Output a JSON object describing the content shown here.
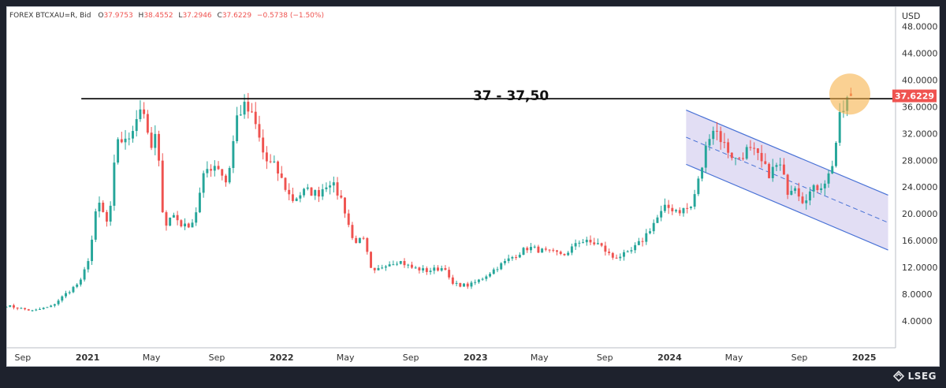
{
  "header": {
    "symbol": "FOREX BTCXAU=R, Bid",
    "open_label": "O",
    "open": "37.9753",
    "high_label": "H",
    "high": "38.4552",
    "low_label": "L",
    "low": "37.2946",
    "close_label": "C",
    "close": "37.6229",
    "change": "−0.5738 (−1.50%)"
  },
  "colors": {
    "up": "#26a69a",
    "down": "#ef5350",
    "channel_line": "#4a73d6",
    "channel_fill": "#d8d3f0",
    "resistance": "#000000",
    "highlight": "#f6b24b",
    "price_badge": "#ef5350"
  },
  "footer": {
    "brand": "LSEG"
  },
  "chart_data": {
    "type": "candlestick",
    "currency": "USD",
    "current_price": "37.6229",
    "resistance_label": "37 - 37,50",
    "resistance_level": 37.2,
    "ylim": [
      0,
      51
    ],
    "y_ticks": [
      "4.0000",
      "8.0000",
      "12.0000",
      "16.0000",
      "20.0000",
      "24.0000",
      "28.0000",
      "32.0000",
      "36.0000",
      "40.0000",
      "44.0000",
      "48.0000"
    ],
    "x_ticks": [
      {
        "label": "Sep",
        "date": "2020-09-01"
      },
      {
        "label": "2021",
        "date": "2021-01-01"
      },
      {
        "label": "May",
        "date": "2021-05-01"
      },
      {
        "label": "Sep",
        "date": "2021-09-01"
      },
      {
        "label": "2022",
        "date": "2022-01-01"
      },
      {
        "label": "May",
        "date": "2022-05-01"
      },
      {
        "label": "Sep",
        "date": "2022-09-01"
      },
      {
        "label": "2023",
        "date": "2023-01-01"
      },
      {
        "label": "May",
        "date": "2023-05-01"
      },
      {
        "label": "Sep",
        "date": "2023-09-01"
      },
      {
        "label": "2024",
        "date": "2024-01-01"
      },
      {
        "label": "May",
        "date": "2024-05-01"
      },
      {
        "label": "Sep",
        "date": "2024-09-01"
      },
      {
        "label": "2025",
        "date": "2025-01-01"
      }
    ],
    "x_range": [
      "2020-08-01",
      "2025-03-01"
    ],
    "resistance_start": "2021-01-01",
    "channel": {
      "upper": [
        {
          "date": "2024-02-01",
          "value": 35.5
        },
        {
          "date": "2025-02-15",
          "value": 22.8
        }
      ],
      "lower": [
        {
          "date": "2024-02-01",
          "value": 27.4
        },
        {
          "date": "2025-02-15",
          "value": 14.6
        }
      ]
    },
    "highlight": {
      "date": "2024-12-05",
      "value": 37.9
    },
    "anchors": [
      [
        "2020-08-01",
        6.3
      ],
      [
        "2020-09-20",
        5.5
      ],
      [
        "2020-10-25",
        6.2
      ],
      [
        "2020-11-20",
        8.0
      ],
      [
        "2020-12-20",
        10.0
      ],
      [
        "2021-01-05",
        14.0
      ],
      [
        "2021-01-20",
        22.0
      ],
      [
        "2021-02-10",
        18.0
      ],
      [
        "2021-02-25",
        31.5
      ],
      [
        "2021-03-15",
        30.5
      ],
      [
        "2021-04-05",
        35.0
      ],
      [
        "2021-04-15",
        36.5
      ],
      [
        "2021-04-28",
        29.0
      ],
      [
        "2021-05-10",
        32.0
      ],
      [
        "2021-05-25",
        18.0
      ],
      [
        "2021-06-10",
        20.0
      ],
      [
        "2021-07-01",
        18.0
      ],
      [
        "2021-07-20",
        19.0
      ],
      [
        "2021-08-10",
        26.5
      ],
      [
        "2021-09-01",
        27.5
      ],
      [
        "2021-09-20",
        24.5
      ],
      [
        "2021-10-10",
        35.0
      ],
      [
        "2021-10-25",
        36.0
      ],
      [
        "2021-11-10",
        34.0
      ],
      [
        "2021-12-01",
        28.0
      ],
      [
        "2021-12-20",
        27.0
      ],
      [
        "2022-01-20",
        22.0
      ],
      [
        "2022-02-15",
        23.5
      ],
      [
        "2022-03-10",
        23.0
      ],
      [
        "2022-04-01",
        25.0
      ],
      [
        "2022-04-25",
        22.0
      ],
      [
        "2022-05-15",
        16.0
      ],
      [
        "2022-06-05",
        16.0
      ],
      [
        "2022-06-20",
        11.0
      ],
      [
        "2022-07-15",
        12.5
      ],
      [
        "2022-08-10",
        13.0
      ],
      [
        "2022-09-01",
        12.0
      ],
      [
        "2022-10-01",
        11.5
      ],
      [
        "2022-11-05",
        12.0
      ],
      [
        "2022-11-15",
        9.5
      ],
      [
        "2022-12-20",
        9.3
      ],
      [
        "2023-01-10",
        10.2
      ],
      [
        "2023-02-10",
        12.0
      ],
      [
        "2023-03-10",
        13.5
      ],
      [
        "2023-04-10",
        15.0
      ],
      [
        "2023-05-20",
        14.2
      ],
      [
        "2023-06-25",
        14.0
      ],
      [
        "2023-07-10",
        16.0
      ],
      [
        "2023-08-20",
        15.5
      ],
      [
        "2023-09-15",
        13.5
      ],
      [
        "2023-10-15",
        14.0
      ],
      [
        "2023-11-10",
        16.0
      ],
      [
        "2023-12-05",
        19.0
      ],
      [
        "2023-12-25",
        21.0
      ],
      [
        "2024-01-20",
        20.5
      ],
      [
        "2024-02-10",
        21.0
      ],
      [
        "2024-02-28",
        26.0
      ],
      [
        "2024-03-15",
        32.0
      ],
      [
        "2024-03-25",
        33.0
      ],
      [
        "2024-04-15",
        30.0
      ],
      [
        "2024-05-05",
        28.0
      ],
      [
        "2024-05-25",
        29.5
      ],
      [
        "2024-06-10",
        29.0
      ],
      [
        "2024-07-05",
        26.0
      ],
      [
        "2024-07-25",
        27.5
      ],
      [
        "2024-08-10",
        23.5
      ],
      [
        "2024-08-25",
        24.5
      ],
      [
        "2024-09-05",
        22.0
      ],
      [
        "2024-09-25",
        23.5
      ],
      [
        "2024-10-15",
        24.5
      ],
      [
        "2024-10-28",
        26.0
      ],
      [
        "2024-11-05",
        28.5
      ],
      [
        "2024-11-15",
        34.0
      ],
      [
        "2024-11-28",
        36.5
      ],
      [
        "2024-12-05",
        38.4
      ],
      [
        "2024-12-12",
        37.6
      ]
    ]
  }
}
